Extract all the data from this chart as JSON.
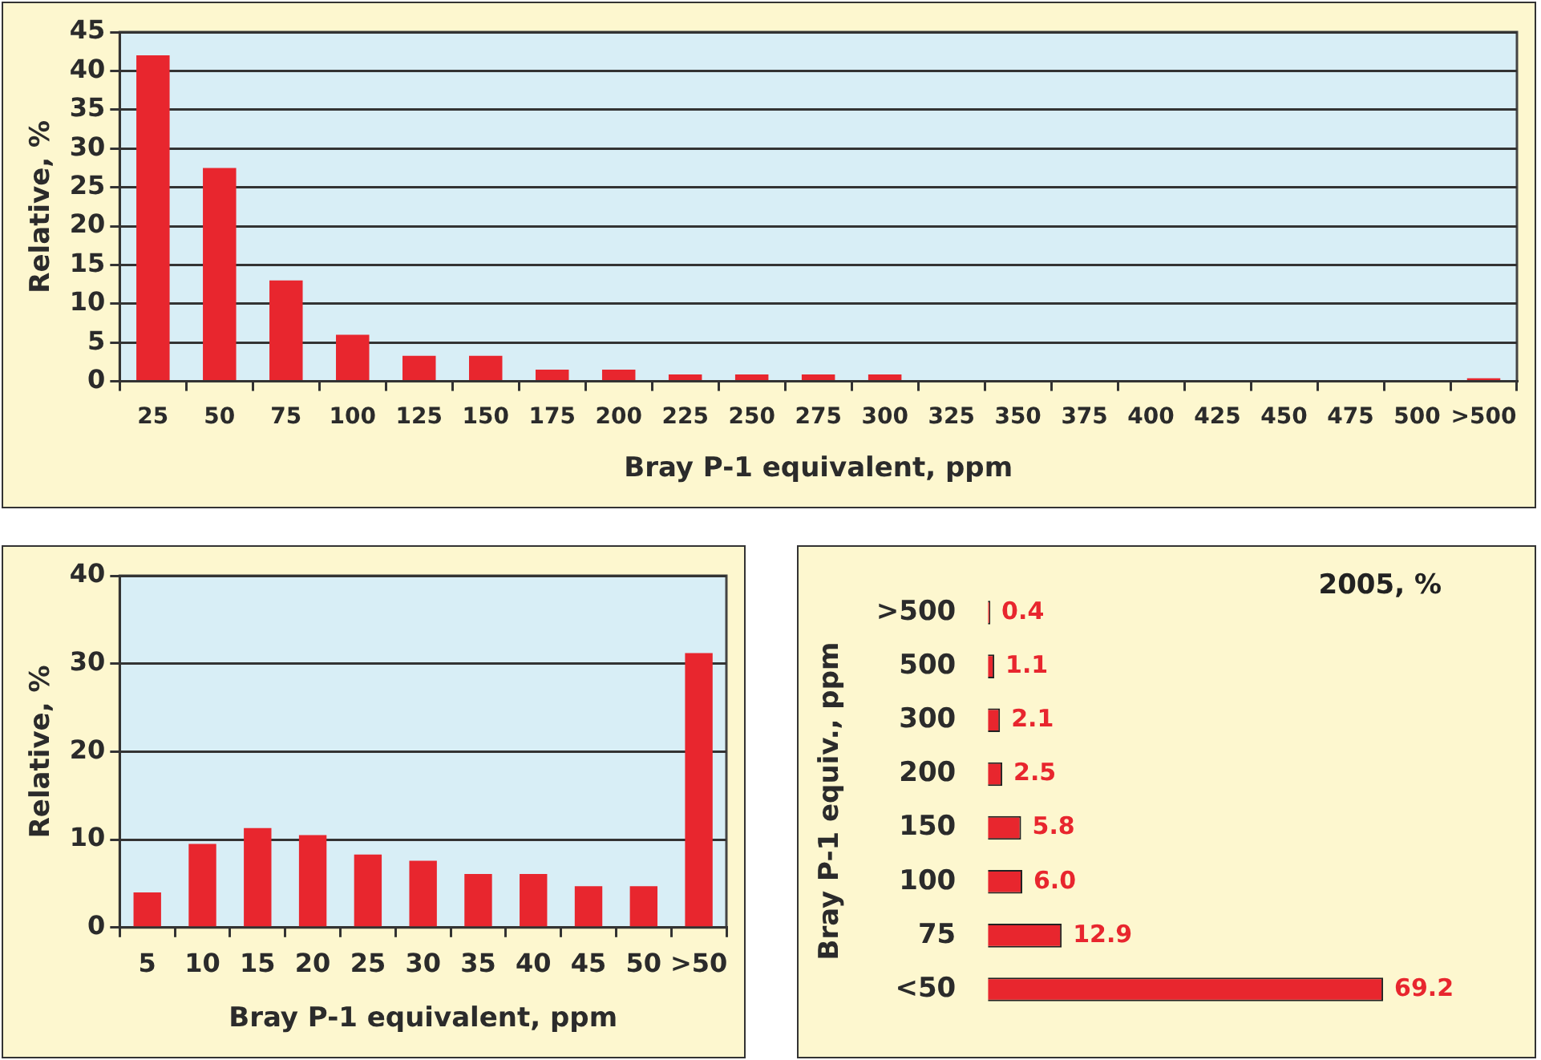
{
  "chart_data": [
    {
      "type": "bar",
      "xlabel": "Bray P-1 equivalent, ppm",
      "ylabel": "Relative, %",
      "color": "#e8262e",
      "categories": [
        "25",
        "50",
        "75",
        "100",
        "125",
        "150",
        "175",
        "200",
        "225",
        "250",
        "275",
        "300",
        "325",
        "350",
        "375",
        "400",
        "425",
        "450",
        "475",
        "500",
        ">500"
      ],
      "values": [
        42,
        27.5,
        13,
        6,
        3.3,
        3.3,
        1.5,
        1.5,
        0.9,
        0.9,
        0.9,
        0.9,
        0,
        0,
        0,
        0,
        0,
        0,
        0,
        0,
        0.4
      ],
      "ylim": [
        0,
        45
      ],
      "yticks": [
        0,
        5,
        10,
        15,
        20,
        25,
        30,
        35,
        40,
        45
      ],
      "grid": "y"
    },
    {
      "type": "bar",
      "xlabel": "Bray P-1 equivalent, ppm",
      "ylabel": "Relative, %",
      "color": "#e8262e",
      "categories": [
        "5",
        "10",
        "15",
        "20",
        "25",
        "30",
        "35",
        "40",
        "45",
        "50",
        ">50"
      ],
      "values": [
        4,
        9.5,
        11.3,
        10.5,
        8.3,
        7.6,
        6.1,
        6.1,
        4.7,
        4.7,
        31.2
      ],
      "ylim": [
        0,
        40
      ],
      "yticks": [
        0,
        10,
        20,
        30,
        40
      ],
      "grid": "y"
    },
    {
      "type": "bar",
      "orientation": "horizontal",
      "title": "2005, %",
      "ylabel": "Bray P-1 equiv., ppm",
      "color": "#e8262e",
      "categories": [
        ">500",
        "500",
        "300",
        "200",
        "150",
        "100",
        "75",
        "<50"
      ],
      "values": [
        0.4,
        1.1,
        2.1,
        2.5,
        5.8,
        6.0,
        12.9,
        69.2
      ],
      "value_labels": [
        "0.4",
        "1.1",
        "2.1",
        "2.5",
        "5.8",
        "6.0",
        "12.9",
        "69.2"
      ],
      "tick_labels": "y",
      "grid": false
    }
  ]
}
